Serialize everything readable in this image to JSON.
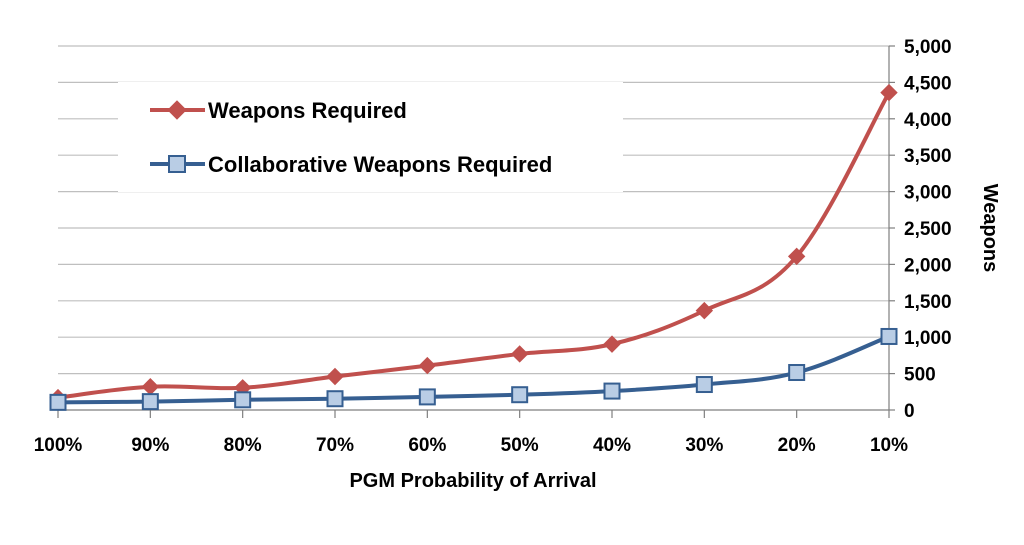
{
  "chart_data": {
    "type": "line",
    "title": "",
    "xlabel": "PGM Probability of Arrival",
    "ylabel": "Weapons",
    "categories": [
      "100%",
      "90%",
      "80%",
      "70%",
      "60%",
      "50%",
      "40%",
      "30%",
      "20%",
      "10%"
    ],
    "y_ticks": [
      "0",
      "500",
      "1,000",
      "1,500",
      "2,000",
      "2,500",
      "3,000",
      "3,500",
      "4,000",
      "4,500",
      "5,000"
    ],
    "ylim": [
      0,
      5000
    ],
    "grid": "horizontal",
    "legend_position": "top-left",
    "series": [
      {
        "name": "Weapons Required",
        "values": [
          170,
          320,
          305,
          460,
          610,
          770,
          905,
          1365,
          2110,
          4360
        ],
        "color": "#c0504d",
        "marker": "diamond"
      },
      {
        "name": "Collaborative Weapons Required",
        "values": [
          105,
          115,
          140,
          155,
          180,
          210,
          260,
          350,
          515,
          1010
        ],
        "color": "#365f91",
        "marker_fill": "#b9cde5",
        "marker": "square"
      }
    ]
  }
}
